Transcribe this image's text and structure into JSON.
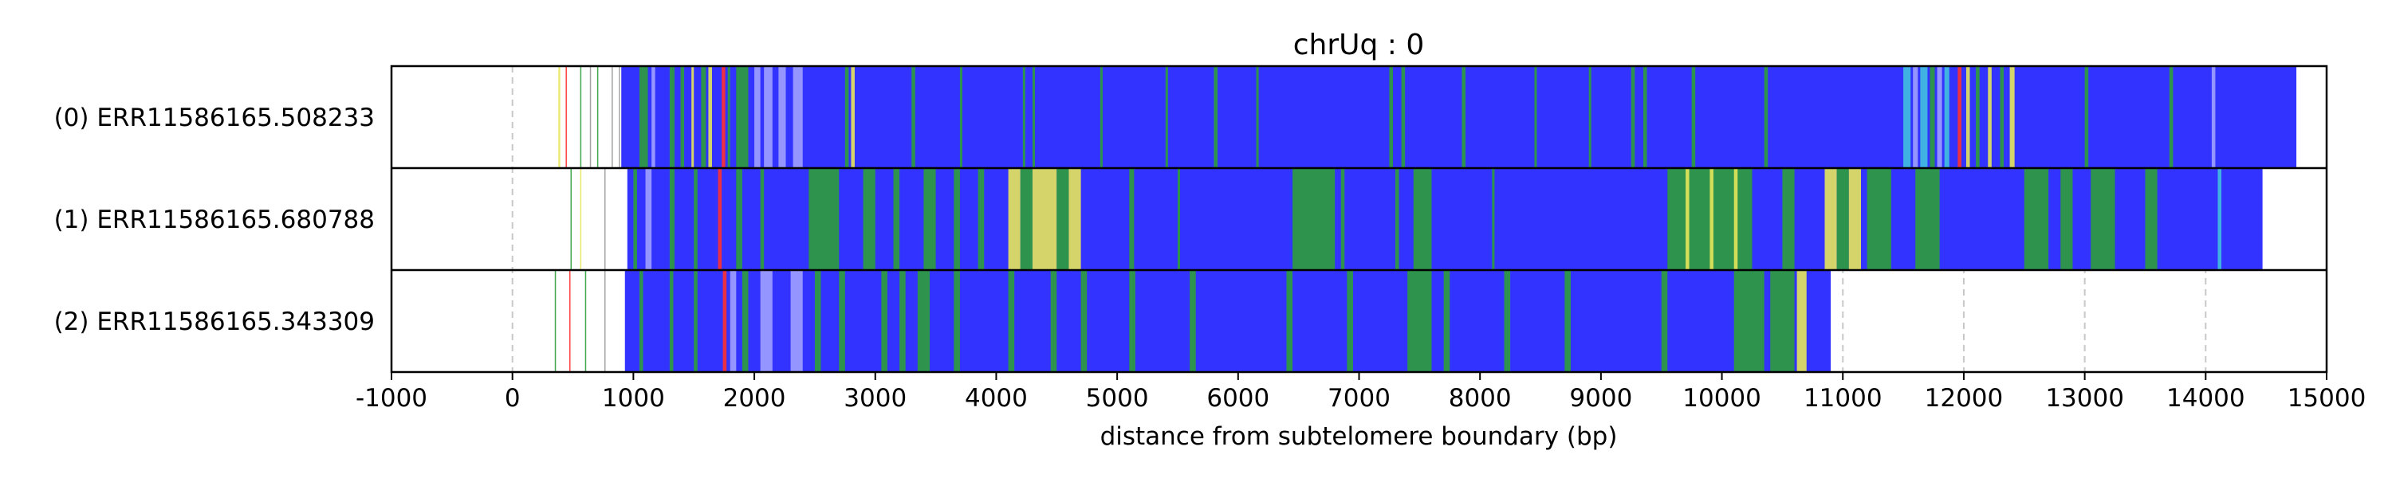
{
  "chart_data": {
    "type": "heatmap",
    "title": "chrUq : 0",
    "xlabel": "distance from subtelomere boundary (bp)",
    "ylabel": "",
    "xlim": [
      -1000,
      15000
    ],
    "xticks": [
      -1000,
      0,
      1000,
      2000,
      3000,
      4000,
      5000,
      6000,
      7000,
      8000,
      9000,
      10000,
      11000,
      12000,
      13000,
      14000,
      15000
    ],
    "xtick_labels": [
      "-1000",
      "0",
      "1000",
      "2000",
      "3000",
      "4000",
      "5000",
      "6000",
      "7000",
      "8000",
      "9000",
      "10000",
      "11000",
      "12000",
      "13000",
      "14000",
      "15000"
    ],
    "grid": "vertical dashed at x ticks",
    "colors": {
      "blue": "#3333ff",
      "green": "#2e9e3a",
      "yellow": "#e6e65a",
      "cyan": "#40c0e0",
      "red": "#ff3030",
      "lightblue": "#a0a0ff",
      "gray": "#9a9a9a",
      "grid": "#c8c8c8"
    },
    "reads": [
      {
        "label": "(0) ERR11586165.508233",
        "start": 900,
        "end": 14750,
        "base_color": "blue",
        "segments": [
          {
            "start": 380,
            "end": 395,
            "color": "yellow"
          },
          {
            "start": 440,
            "end": 450,
            "color": "red"
          },
          {
            "start": 560,
            "end": 570,
            "color": "green"
          },
          {
            "start": 640,
            "end": 650,
            "color": "gray"
          },
          {
            "start": 700,
            "end": 710,
            "color": "green"
          },
          {
            "start": 820,
            "end": 830,
            "color": "gray"
          },
          {
            "start": 880,
            "end": 890,
            "color": "gray"
          },
          {
            "start": 1050,
            "end": 1120,
            "color": "green"
          },
          {
            "start": 1150,
            "end": 1180,
            "color": "lightblue"
          },
          {
            "start": 1300,
            "end": 1340,
            "color": "green"
          },
          {
            "start": 1390,
            "end": 1420,
            "color": "green"
          },
          {
            "start": 1480,
            "end": 1500,
            "color": "yellow"
          },
          {
            "start": 1560,
            "end": 1600,
            "color": "green"
          },
          {
            "start": 1620,
            "end": 1650,
            "color": "yellow"
          },
          {
            "start": 1730,
            "end": 1760,
            "color": "red"
          },
          {
            "start": 1780,
            "end": 1800,
            "color": "green"
          },
          {
            "start": 1850,
            "end": 1950,
            "color": "green"
          },
          {
            "start": 2000,
            "end": 2050,
            "color": "lightblue"
          },
          {
            "start": 2080,
            "end": 2150,
            "color": "lightblue"
          },
          {
            "start": 2200,
            "end": 2260,
            "color": "lightblue"
          },
          {
            "start": 2320,
            "end": 2400,
            "color": "lightblue"
          },
          {
            "start": 2750,
            "end": 2780,
            "color": "green"
          },
          {
            "start": 2800,
            "end": 2830,
            "color": "yellow"
          },
          {
            "start": 3300,
            "end": 3330,
            "color": "green"
          },
          {
            "start": 3700,
            "end": 3720,
            "color": "green"
          },
          {
            "start": 4220,
            "end": 4240,
            "color": "green"
          },
          {
            "start": 4300,
            "end": 4320,
            "color": "green"
          },
          {
            "start": 4860,
            "end": 4880,
            "color": "green"
          },
          {
            "start": 5400,
            "end": 5420,
            "color": "green"
          },
          {
            "start": 5800,
            "end": 5830,
            "color": "green"
          },
          {
            "start": 6150,
            "end": 6170,
            "color": "green"
          },
          {
            "start": 7250,
            "end": 7280,
            "color": "green"
          },
          {
            "start": 7350,
            "end": 7380,
            "color": "green"
          },
          {
            "start": 7850,
            "end": 7880,
            "color": "green"
          },
          {
            "start": 8450,
            "end": 8470,
            "color": "green"
          },
          {
            "start": 8900,
            "end": 8920,
            "color": "green"
          },
          {
            "start": 9250,
            "end": 9280,
            "color": "green"
          },
          {
            "start": 9350,
            "end": 9380,
            "color": "green"
          },
          {
            "start": 9750,
            "end": 9780,
            "color": "green"
          },
          {
            "start": 10350,
            "end": 10380,
            "color": "green"
          },
          {
            "start": 11500,
            "end": 11560,
            "color": "cyan"
          },
          {
            "start": 11580,
            "end": 11620,
            "color": "lightblue"
          },
          {
            "start": 11640,
            "end": 11700,
            "color": "cyan"
          },
          {
            "start": 11720,
            "end": 11760,
            "color": "green"
          },
          {
            "start": 11780,
            "end": 11820,
            "color": "lightblue"
          },
          {
            "start": 11840,
            "end": 11880,
            "color": "cyan"
          },
          {
            "start": 11950,
            "end": 11980,
            "color": "red"
          },
          {
            "start": 12020,
            "end": 12050,
            "color": "yellow"
          },
          {
            "start": 12100,
            "end": 12130,
            "color": "green"
          },
          {
            "start": 12200,
            "end": 12230,
            "color": "yellow"
          },
          {
            "start": 12300,
            "end": 12330,
            "color": "green"
          },
          {
            "start": 12380,
            "end": 12420,
            "color": "yellow"
          },
          {
            "start": 13000,
            "end": 13030,
            "color": "green"
          },
          {
            "start": 13700,
            "end": 13730,
            "color": "green"
          },
          {
            "start": 14050,
            "end": 14080,
            "color": "lightblue"
          }
        ]
      },
      {
        "label": "(1) ERR11586165.680788",
        "start": 950,
        "end": 14470,
        "base_color": "blue",
        "segments": [
          {
            "start": 480,
            "end": 490,
            "color": "green"
          },
          {
            "start": 560,
            "end": 570,
            "color": "yellow"
          },
          {
            "start": 760,
            "end": 770,
            "color": "gray"
          },
          {
            "start": 1000,
            "end": 1030,
            "color": "green"
          },
          {
            "start": 1100,
            "end": 1150,
            "color": "lightblue"
          },
          {
            "start": 1300,
            "end": 1340,
            "color": "green"
          },
          {
            "start": 1500,
            "end": 1530,
            "color": "green"
          },
          {
            "start": 1700,
            "end": 1730,
            "color": "red"
          },
          {
            "start": 1850,
            "end": 1900,
            "color": "green"
          },
          {
            "start": 2050,
            "end": 2080,
            "color": "green"
          },
          {
            "start": 2450,
            "end": 2700,
            "color": "green"
          },
          {
            "start": 2900,
            "end": 3000,
            "color": "green"
          },
          {
            "start": 3150,
            "end": 3200,
            "color": "green"
          },
          {
            "start": 3400,
            "end": 3500,
            "color": "green"
          },
          {
            "start": 3650,
            "end": 3700,
            "color": "green"
          },
          {
            "start": 3850,
            "end": 3900,
            "color": "green"
          },
          {
            "start": 4100,
            "end": 4200,
            "color": "yellow"
          },
          {
            "start": 4200,
            "end": 4300,
            "color": "green"
          },
          {
            "start": 4300,
            "end": 4500,
            "color": "yellow"
          },
          {
            "start": 4500,
            "end": 4600,
            "color": "green"
          },
          {
            "start": 4600,
            "end": 4700,
            "color": "yellow"
          },
          {
            "start": 5100,
            "end": 5140,
            "color": "green"
          },
          {
            "start": 5500,
            "end": 5520,
            "color": "green"
          },
          {
            "start": 6450,
            "end": 6800,
            "color": "green"
          },
          {
            "start": 6850,
            "end": 6880,
            "color": "green"
          },
          {
            "start": 7300,
            "end": 7330,
            "color": "green"
          },
          {
            "start": 7450,
            "end": 7600,
            "color": "green"
          },
          {
            "start": 8100,
            "end": 8120,
            "color": "green"
          },
          {
            "start": 9550,
            "end": 10250,
            "color": "green"
          },
          {
            "start": 9700,
            "end": 9730,
            "color": "yellow"
          },
          {
            "start": 9900,
            "end": 9930,
            "color": "yellow"
          },
          {
            "start": 10100,
            "end": 10130,
            "color": "yellow"
          },
          {
            "start": 10500,
            "end": 10600,
            "color": "green"
          },
          {
            "start": 10850,
            "end": 10950,
            "color": "yellow"
          },
          {
            "start": 10950,
            "end": 11050,
            "color": "green"
          },
          {
            "start": 11050,
            "end": 11150,
            "color": "yellow"
          },
          {
            "start": 11200,
            "end": 11400,
            "color": "green"
          },
          {
            "start": 11600,
            "end": 11800,
            "color": "green"
          },
          {
            "start": 12500,
            "end": 12700,
            "color": "green"
          },
          {
            "start": 12800,
            "end": 12900,
            "color": "green"
          },
          {
            "start": 13050,
            "end": 13250,
            "color": "green"
          },
          {
            "start": 13500,
            "end": 13600,
            "color": "green"
          },
          {
            "start": 14100,
            "end": 14130,
            "color": "cyan"
          }
        ]
      },
      {
        "label": "(2) ERR11586165.343309",
        "start": 930,
        "end": 10900,
        "base_color": "blue",
        "segments": [
          {
            "start": 350,
            "end": 360,
            "color": "green"
          },
          {
            "start": 470,
            "end": 480,
            "color": "red"
          },
          {
            "start": 600,
            "end": 610,
            "color": "green"
          },
          {
            "start": 760,
            "end": 770,
            "color": "gray"
          },
          {
            "start": 1050,
            "end": 1080,
            "color": "green"
          },
          {
            "start": 1300,
            "end": 1330,
            "color": "green"
          },
          {
            "start": 1500,
            "end": 1530,
            "color": "green"
          },
          {
            "start": 1740,
            "end": 1770,
            "color": "red"
          },
          {
            "start": 1800,
            "end": 1850,
            "color": "lightblue"
          },
          {
            "start": 1900,
            "end": 1950,
            "color": "green"
          },
          {
            "start": 2050,
            "end": 2150,
            "color": "lightblue"
          },
          {
            "start": 2300,
            "end": 2400,
            "color": "lightblue"
          },
          {
            "start": 2500,
            "end": 2550,
            "color": "green"
          },
          {
            "start": 2700,
            "end": 2750,
            "color": "green"
          },
          {
            "start": 3050,
            "end": 3100,
            "color": "green"
          },
          {
            "start": 3200,
            "end": 3250,
            "color": "green"
          },
          {
            "start": 3350,
            "end": 3450,
            "color": "green"
          },
          {
            "start": 3650,
            "end": 3700,
            "color": "green"
          },
          {
            "start": 4100,
            "end": 4150,
            "color": "green"
          },
          {
            "start": 4450,
            "end": 4500,
            "color": "green"
          },
          {
            "start": 4700,
            "end": 4750,
            "color": "green"
          },
          {
            "start": 5100,
            "end": 5150,
            "color": "green"
          },
          {
            "start": 5600,
            "end": 5650,
            "color": "green"
          },
          {
            "start": 6400,
            "end": 6450,
            "color": "green"
          },
          {
            "start": 6900,
            "end": 6950,
            "color": "green"
          },
          {
            "start": 7400,
            "end": 7600,
            "color": "green"
          },
          {
            "start": 7700,
            "end": 7750,
            "color": "green"
          },
          {
            "start": 8200,
            "end": 8250,
            "color": "green"
          },
          {
            "start": 8700,
            "end": 8750,
            "color": "green"
          },
          {
            "start": 9500,
            "end": 9550,
            "color": "green"
          },
          {
            "start": 10100,
            "end": 10350,
            "color": "green"
          },
          {
            "start": 10400,
            "end": 10600,
            "color": "green"
          },
          {
            "start": 10620,
            "end": 10700,
            "color": "yellow"
          }
        ]
      }
    ]
  }
}
